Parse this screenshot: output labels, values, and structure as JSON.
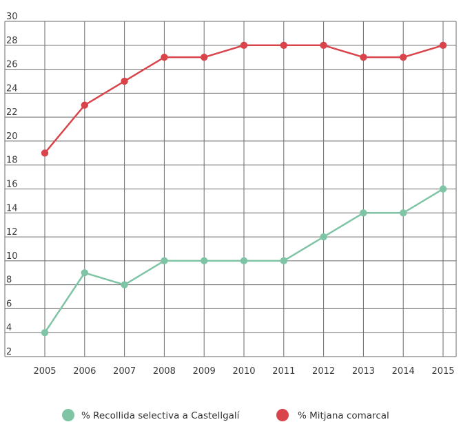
{
  "chart_data": {
    "type": "line",
    "title": "",
    "xlabel": "",
    "ylabel": "",
    "categories": [
      "2005",
      "2006",
      "2007",
      "2008",
      "2009",
      "2010",
      "2011",
      "2012",
      "2013",
      "2014",
      "2015"
    ],
    "y_ticks": [
      "2",
      "4",
      "6",
      "8",
      "10",
      "12",
      "14",
      "16",
      "18",
      "20",
      "22",
      "24",
      "26",
      "28",
      "30"
    ],
    "ylim": [
      2,
      30
    ],
    "grid": true,
    "legend_position": "bottom",
    "series": [
      {
        "name": "% Recollida selectiva a Castellgalí",
        "color": "#7fc4a4",
        "values": [
          4,
          9,
          8,
          10,
          10,
          10,
          10,
          12,
          14,
          14,
          16
        ]
      },
      {
        "name": "% Mitjana comarcal",
        "color": "#d9444a",
        "values": [
          19,
          23,
          25,
          27,
          27,
          28,
          28,
          28,
          27,
          27,
          28
        ]
      }
    ]
  }
}
